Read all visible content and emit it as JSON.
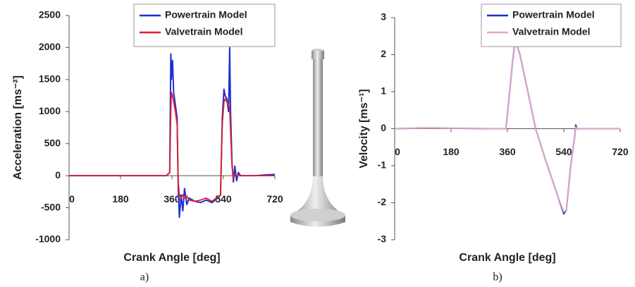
{
  "chart_data": [
    {
      "type": "line",
      "caption": "a)",
      "x_label": "Crank Angle [deg]",
      "y_label": "Acceleration [ms⁻²]",
      "x": [
        0,
        100,
        200,
        340,
        352,
        356,
        358,
        362,
        366,
        372,
        378,
        382,
        386,
        392,
        398,
        404,
        412,
        420,
        440,
        460,
        480,
        500,
        520,
        530,
        536,
        542,
        546,
        552,
        558,
        562,
        565,
        570,
        575,
        580,
        586,
        592,
        600,
        650,
        720
      ],
      "series": [
        {
          "name": "Powertrain Model",
          "color": "#1f2fd0",
          "values": [
            0,
            0,
            0,
            0,
            50,
            1900,
            1500,
            1800,
            1300,
            1100,
            900,
            -200,
            -650,
            -300,
            -550,
            -200,
            -450,
            -350,
            -400,
            -420,
            -380,
            -420,
            -350,
            -300,
            900,
            1350,
            1250,
            1200,
            1000,
            2000,
            1000,
            200,
            -100,
            150,
            -80,
            50,
            0,
            0,
            20
          ]
        },
        {
          "name": "Valvetrain Model",
          "color": "#e0202a",
          "values": [
            0,
            0,
            0,
            0,
            50,
            1000,
            1300,
            1250,
            1150,
            1000,
            800,
            -100,
            -300,
            -350,
            -300,
            -350,
            -320,
            -380,
            -400,
            -380,
            -350,
            -400,
            -330,
            -300,
            800,
            1150,
            1200,
            1150,
            1100,
            1050,
            700,
            150,
            -50,
            20,
            0,
            0,
            0,
            0,
            0
          ]
        }
      ],
      "xlim": [
        0,
        720
      ],
      "xticks": [
        0,
        180,
        360,
        540,
        720
      ],
      "ylim": [
        -1000,
        2500
      ],
      "yticks": [
        -1000,
        -500,
        0,
        500,
        1000,
        1500,
        2000,
        2500
      ]
    },
    {
      "type": "line",
      "caption": "b)",
      "x_label": "Crank Angle [deg]",
      "y_label": "Velocity [ms⁻¹]",
      "x": [
        0,
        100,
        300,
        355,
        365,
        375,
        385,
        392,
        400,
        420,
        450,
        480,
        500,
        520,
        540,
        548,
        555,
        562,
        570,
        575,
        578,
        582,
        590,
        650,
        720
      ],
      "series": [
        {
          "name": "Powertrain Model",
          "color": "#1f2fd0",
          "values": [
            0,
            0.02,
            0,
            0,
            0.8,
            1.7,
            2.4,
            2.2,
            2.0,
            1.2,
            0,
            -0.8,
            -1.3,
            -1.8,
            -2.3,
            -2.2,
            -1.6,
            -1.0,
            -0.5,
            -0.2,
            0.1,
            0,
            0,
            0,
            0
          ]
        },
        {
          "name": "Valvetrain Model",
          "color": "#e8a6c0",
          "values": [
            0,
            0.02,
            0,
            0,
            0.8,
            1.7,
            2.35,
            2.2,
            2.0,
            1.2,
            0,
            -0.8,
            -1.3,
            -1.8,
            -2.25,
            -2.2,
            -1.6,
            -1.0,
            -0.5,
            -0.2,
            0.05,
            0,
            0,
            0,
            0
          ]
        }
      ],
      "xlim": [
        0,
        720
      ],
      "xticks": [
        0,
        180,
        360,
        540,
        720
      ],
      "ylim": [
        -3,
        3
      ],
      "yticks": [
        -3,
        -2,
        -1,
        0,
        1,
        2,
        3
      ]
    }
  ]
}
